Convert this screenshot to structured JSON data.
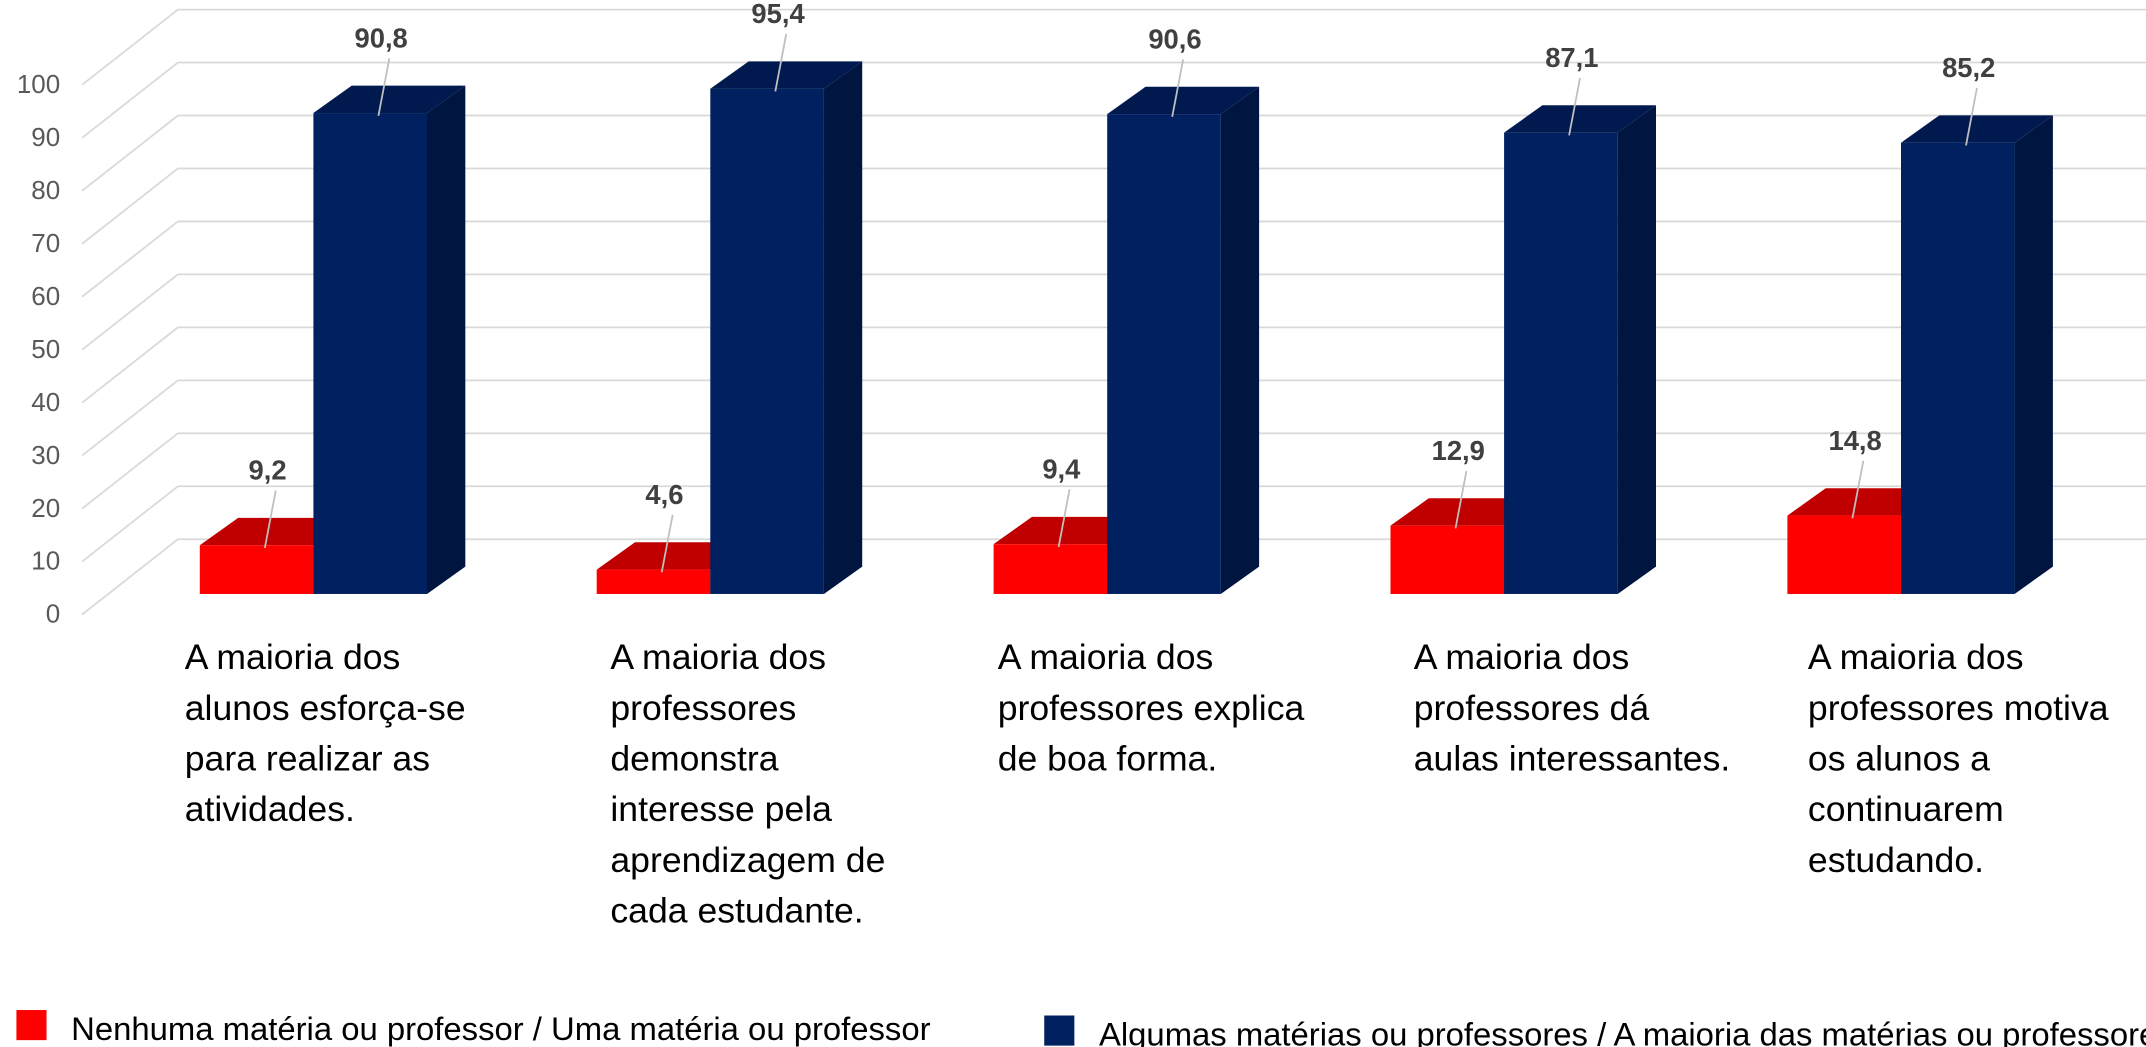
{
  "chart_data": {
    "type": "bar3d",
    "categories": [
      "A maioria dos alunos esforça-se para realizar as atividades.",
      "A maioria dos professores demonstra interesse pela aprendizagem de cada estudante.",
      "A maioria dos professores explica de boa forma.",
      "A maioria dos professores dá aulas interessantes.",
      "A maioria dos professores motiva os alunos a continuarem estudando."
    ],
    "series": [
      {
        "name": "Nenhuma matéria ou professor / Uma matéria ou professor",
        "color": "#ff0000",
        "values": [
          9.2,
          4.6,
          9.4,
          12.9,
          14.8
        ],
        "value_labels": [
          "9,2",
          "4,6",
          "9,4",
          "12,9",
          "14,8"
        ]
      },
      {
        "name": "Algumas matérias ou professores / A maioria das matérias ou professores",
        "color": "#002060",
        "values": [
          90.8,
          95.4,
          90.6,
          87.1,
          85.2
        ],
        "value_labels": [
          "90,8",
          "95,4",
          "90,6",
          "87,1",
          "85,2"
        ]
      }
    ],
    "ylim": [
      0,
      100
    ],
    "yticks": [
      0,
      10,
      20,
      30,
      40,
      50,
      60,
      70,
      80,
      90,
      100
    ],
    "grid": true,
    "legend": "bottom"
  }
}
